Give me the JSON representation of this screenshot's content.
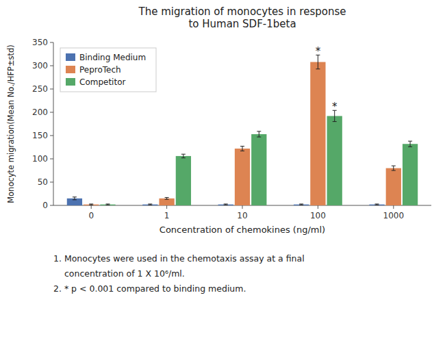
{
  "chart_data": {
    "type": "bar",
    "title": "The migration of monocytes in response\nto Human SDF-1beta",
    "x_label": "Concentration of chemokines (ng/ml)",
    "y_label": "Monocyte migration(Mean No./HFP±std)",
    "categories": [
      "0",
      "1",
      "10",
      "100",
      "1000"
    ],
    "series": [
      {
        "name": "Binding Medium",
        "color": "#4c72b0",
        "values": [
          15,
          2,
          2,
          2,
          2
        ],
        "errors": [
          3,
          1,
          1,
          1,
          1
        ]
      },
      {
        "name": "PeproTech",
        "color": "#dd8452",
        "values": [
          2,
          15,
          122,
          308,
          80
        ],
        "errors": [
          1,
          2,
          5,
          15,
          5
        ]
      },
      {
        "name": "Competitor",
        "color": "#55a868",
        "values": [
          2,
          106,
          153,
          192,
          132
        ],
        "errors": [
          1,
          4,
          6,
          12,
          6
        ]
      }
    ],
    "ylim": [
      0,
      350
    ],
    "yticks": [
      0,
      50,
      100,
      150,
      200,
      250,
      300,
      350
    ],
    "grid": false,
    "legend": "upper left",
    "annotations": [
      {
        "text": "*",
        "x": "100",
        "series": "PeproTech",
        "y": 326
      },
      {
        "text": "*",
        "x": "100",
        "series": "Competitor",
        "y": 207
      }
    ],
    "notes": [
      "1. Monocytes were used in the chemotaxis assay at a final",
      "concentration of 1 X 10⁶/ml.",
      "2. * p < 0.001 compared to binding medium."
    ]
  }
}
